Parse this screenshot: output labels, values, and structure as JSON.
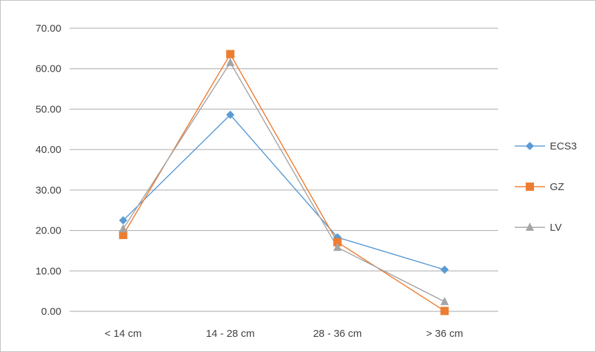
{
  "chart_data": {
    "type": "line",
    "categories": [
      "< 14 cm",
      "14 - 28 cm",
      "28 - 36 cm",
      "> 36 cm"
    ],
    "series": [
      {
        "name": "ECS3",
        "values": [
          22.5,
          48.6,
          18.3,
          10.3
        ],
        "color": "#5b9bd5",
        "marker": "diamond"
      },
      {
        "name": "GZ",
        "values": [
          18.9,
          63.6,
          17.1,
          0.1
        ],
        "color": "#ed7d31",
        "marker": "square"
      },
      {
        "name": "LV",
        "values": [
          20.4,
          61.5,
          15.8,
          2.4
        ],
        "color": "#a5a5a5",
        "marker": "triangle"
      }
    ],
    "ylim": [
      0,
      70
    ],
    "yticks": [
      "0.00",
      "10.00",
      "20.00",
      "30.00",
      "40.00",
      "50.00",
      "60.00",
      "70.00"
    ],
    "grid": true,
    "legend_position": "right"
  }
}
